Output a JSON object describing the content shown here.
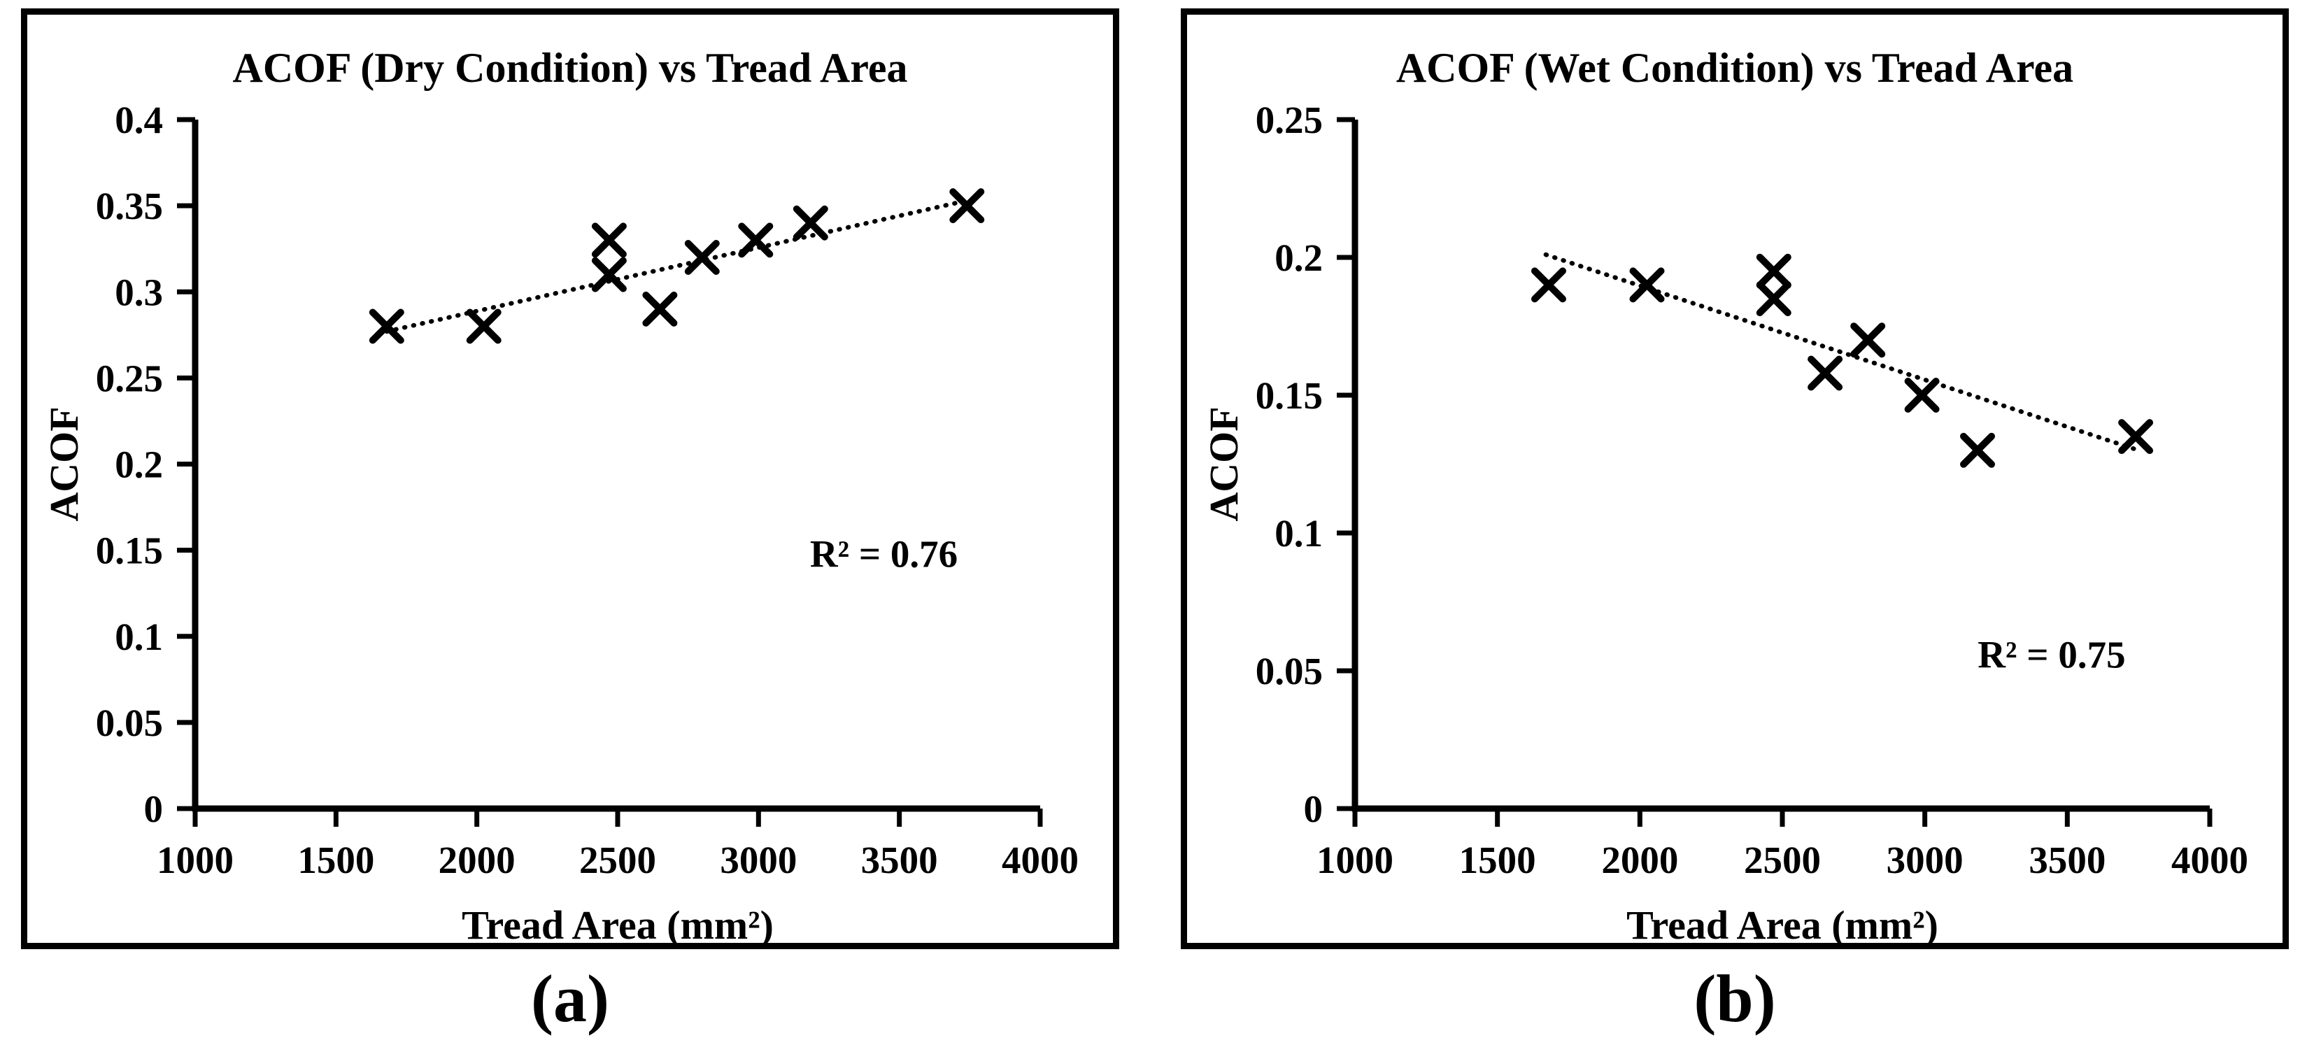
{
  "figure": {
    "background": "#ffffff",
    "ink": "#000000",
    "captions": [
      {
        "label": "(a)"
      },
      {
        "label": "(b)"
      }
    ]
  },
  "chart_data": [
    {
      "id": "dry",
      "type": "scatter",
      "title": "ACOF (Dry Condition) vs Tread Area",
      "xlabel": "Tread Area (mm²)",
      "ylabel": "ACOF",
      "xlim": [
        1000,
        4000
      ],
      "ylim": [
        0,
        0.4
      ],
      "grid": false,
      "legend": "none",
      "marker": "x",
      "marker_color": "#000000",
      "xticks": [
        {
          "v": 1000,
          "label": "1000"
        },
        {
          "v": 1500,
          "label": "1500"
        },
        {
          "v": 2000,
          "label": "2000"
        },
        {
          "v": 2500,
          "label": "2500"
        },
        {
          "v": 3000,
          "label": "3000"
        },
        {
          "v": 3500,
          "label": "3500"
        },
        {
          "v": 4000,
          "label": "4000"
        }
      ],
      "yticks": [
        {
          "v": 0,
          "label": "0"
        },
        {
          "v": 0.05,
          "label": "0.05"
        },
        {
          "v": 0.1,
          "label": "0.1"
        },
        {
          "v": 0.15,
          "label": "0.15"
        },
        {
          "v": 0.2,
          "label": "0.2"
        },
        {
          "v": 0.25,
          "label": "0.25"
        },
        {
          "v": 0.3,
          "label": "0.3"
        },
        {
          "v": 0.35,
          "label": "0.35"
        },
        {
          "v": 0.4,
          "label": "0.4"
        }
      ],
      "points": [
        {
          "x": 1680,
          "y": 0.28
        },
        {
          "x": 2025,
          "y": 0.28
        },
        {
          "x": 2470,
          "y": 0.33
        },
        {
          "x": 2470,
          "y": 0.31
        },
        {
          "x": 2650,
          "y": 0.29
        },
        {
          "x": 2800,
          "y": 0.32
        },
        {
          "x": 2990,
          "y": 0.33
        },
        {
          "x": 3185,
          "y": 0.34
        },
        {
          "x": 3740,
          "y": 0.35
        }
      ],
      "trendline": {
        "style": "dotted",
        "from": {
          "x": 1680,
          "y": 0.277
        },
        "to": {
          "x": 3740,
          "y": 0.353
        }
      },
      "annotation": {
        "text": "R² = 0.76",
        "x": 3445,
        "y": 0.148
      },
      "caption": "(a)"
    },
    {
      "id": "wet",
      "type": "scatter",
      "title": "ACOF (Wet Condition) vs Tread Area",
      "xlabel": "Tread Area (mm²)",
      "ylabel": "ACOF",
      "xlim": [
        1000,
        4000
      ],
      "ylim": [
        0,
        0.25
      ],
      "grid": false,
      "legend": "none",
      "marker": "x",
      "marker_color": "#000000",
      "xticks": [
        {
          "v": 1000,
          "label": "1000"
        },
        {
          "v": 1500,
          "label": "1500"
        },
        {
          "v": 2000,
          "label": "2000"
        },
        {
          "v": 2500,
          "label": "2500"
        },
        {
          "v": 3000,
          "label": "3000"
        },
        {
          "v": 3500,
          "label": "3500"
        },
        {
          "v": 4000,
          "label": "4000"
        }
      ],
      "yticks": [
        {
          "v": 0,
          "label": "0"
        },
        {
          "v": 0.05,
          "label": "0.05"
        },
        {
          "v": 0.1,
          "label": "0.1"
        },
        {
          "v": 0.15,
          "label": "0.15"
        },
        {
          "v": 0.2,
          "label": "0.2"
        },
        {
          "v": 0.25,
          "label": "0.25"
        }
      ],
      "points": [
        {
          "x": 1680,
          "y": 0.19
        },
        {
          "x": 2025,
          "y": 0.19
        },
        {
          "x": 2470,
          "y": 0.195
        },
        {
          "x": 2470,
          "y": 0.185
        },
        {
          "x": 2650,
          "y": 0.158
        },
        {
          "x": 2800,
          "y": 0.17
        },
        {
          "x": 2990,
          "y": 0.15
        },
        {
          "x": 3185,
          "y": 0.13
        },
        {
          "x": 3740,
          "y": 0.135
        }
      ],
      "trendline": {
        "style": "dotted",
        "from": {
          "x": 1670,
          "y": 0.201
        },
        "to": {
          "x": 3750,
          "y": 0.13
        }
      },
      "annotation": {
        "text": "R² = 0.75",
        "x": 3445,
        "y": 0.056
      },
      "caption": "(b)"
    }
  ]
}
